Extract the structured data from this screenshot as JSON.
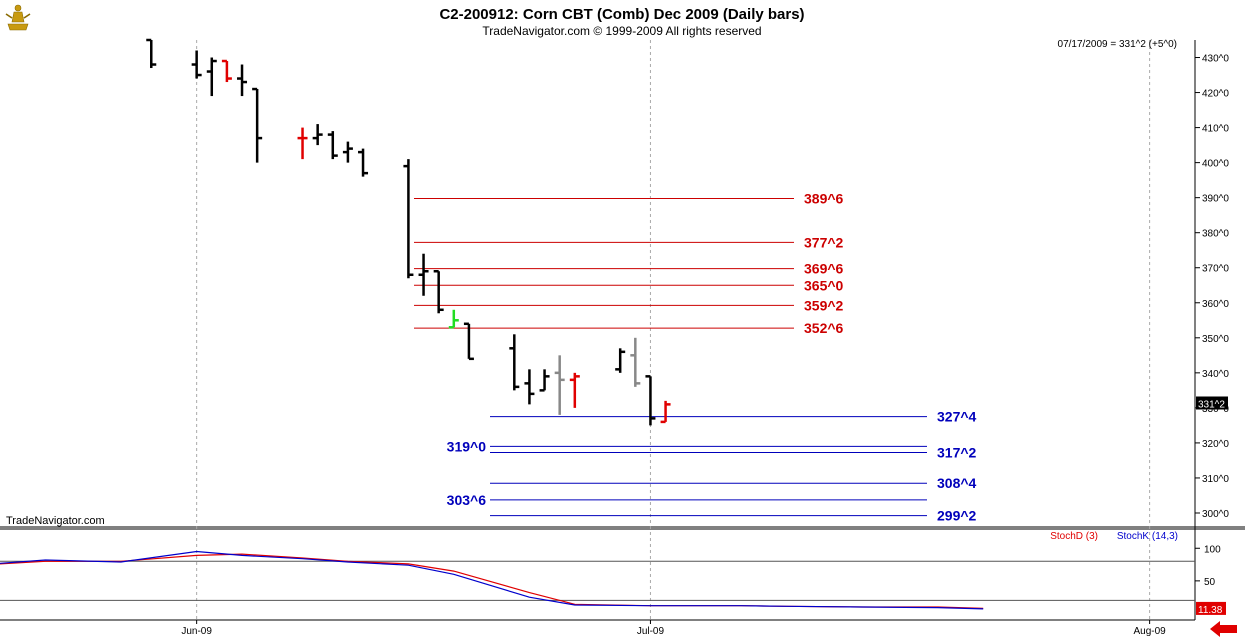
{
  "header": {
    "title": "C2-200912:  Corn CBT (Comb) Dec 2009  (Daily bars)",
    "subtitle": "TradeNavigator.com © 1999-2009 All rights reserved",
    "last_quote": "07/17/2009 = 331^2 (+5^0)",
    "watermark": "TradeNavigator.com",
    "logo_icon": "trader-figure-logo-icon"
  },
  "footer": {
    "scroll_icon": "left-arrow-icon"
  },
  "colors": {
    "up_bar": "#000000",
    "down_bar": "#000000",
    "red_bar": "#e00000",
    "gray_bar": "#888888",
    "green_bar": "#22dd22",
    "resistance": "#cc0000",
    "support": "#0000bb",
    "stoch_d": "#e00000",
    "stoch_k": "#0000cc"
  },
  "chart_data": [
    {
      "type": "ohlc",
      "title": "C2-200912:  Corn CBT (Comb) Dec 2009  (Daily bars)",
      "xlabel": "",
      "ylabel": "",
      "ylim": [
        296,
        435
      ],
      "y_ticks": [
        "300^0",
        "310^0",
        "320^0",
        "330^0",
        "340^0",
        "350^0",
        "360^0",
        "370^0",
        "380^0",
        "390^0",
        "400^0",
        "410^0",
        "420^0",
        "430^0"
      ],
      "y_tick_values": [
        300,
        310,
        320,
        330,
        340,
        350,
        360,
        370,
        380,
        390,
        400,
        410,
        420,
        430
      ],
      "x_tick_labels": [
        "Jun-09",
        "Jul-09",
        "Aug-09"
      ],
      "x_tick_dates": [
        "2009-06-01",
        "2009-07-01",
        "2009-08-03"
      ],
      "date_range": [
        "2009-05-19",
        "2009-08-06"
      ],
      "last_price_label": "331^2",
      "last_price": 331.25,
      "bars": [
        {
          "date": "2009-05-29",
          "o": 435,
          "h": 435,
          "l": 427,
          "c": 428,
          "color": "black"
        },
        {
          "date": "2009-06-01",
          "o": 428,
          "h": 432,
          "l": 424,
          "c": 425,
          "color": "black"
        },
        {
          "date": "2009-06-02",
          "o": 426,
          "h": 430,
          "l": 419,
          "c": 429,
          "color": "black"
        },
        {
          "date": "2009-06-03",
          "o": 429,
          "h": 429,
          "l": 423,
          "c": 424,
          "color": "red"
        },
        {
          "date": "2009-06-04",
          "o": 424,
          "h": 428,
          "l": 419,
          "c": 423,
          "color": "black"
        },
        {
          "date": "2009-06-05",
          "o": 421,
          "h": 421,
          "l": 400,
          "c": 407,
          "color": "black"
        },
        {
          "date": "2009-06-08",
          "o": 407,
          "h": 410,
          "l": 401,
          "c": 407,
          "color": "red"
        },
        {
          "date": "2009-06-09",
          "o": 407,
          "h": 411,
          "l": 405,
          "c": 408,
          "color": "black"
        },
        {
          "date": "2009-06-10",
          "o": 408,
          "h": 409,
          "l": 401,
          "c": 402,
          "color": "black"
        },
        {
          "date": "2009-06-11",
          "o": 403,
          "h": 406,
          "l": 400,
          "c": 404,
          "color": "black"
        },
        {
          "date": "2009-06-12",
          "o": 403,
          "h": 404,
          "l": 396,
          "c": 397,
          "color": "black"
        },
        {
          "date": "2009-06-15",
          "o": 399,
          "h": 401,
          "l": 367,
          "c": 368,
          "color": "black"
        },
        {
          "date": "2009-06-16",
          "o": 368,
          "h": 374,
          "l": 362,
          "c": 369,
          "color": "black"
        },
        {
          "date": "2009-06-17",
          "o": 369,
          "h": 369,
          "l": 357,
          "c": 358,
          "color": "black"
        },
        {
          "date": "2009-06-18",
          "o": 353,
          "h": 358,
          "l": 353,
          "c": 355,
          "color": "green"
        },
        {
          "date": "2009-06-19",
          "o": 354,
          "h": 354,
          "l": 344,
          "c": 344,
          "color": "black"
        },
        {
          "date": "2009-06-22",
          "o": 347,
          "h": 351,
          "l": 335,
          "c": 336,
          "color": "black"
        },
        {
          "date": "2009-06-23",
          "o": 337,
          "h": 341,
          "l": 331,
          "c": 334,
          "color": "black"
        },
        {
          "date": "2009-06-24",
          "o": 335,
          "h": 341,
          "l": 335,
          "c": 339,
          "color": "black"
        },
        {
          "date": "2009-06-25",
          "o": 340,
          "h": 345,
          "l": 328,
          "c": 338,
          "color": "gray"
        },
        {
          "date": "2009-06-26",
          "o": 338,
          "h": 340,
          "l": 330,
          "c": 339,
          "color": "red"
        },
        {
          "date": "2009-06-29",
          "o": 341,
          "h": 347,
          "l": 340,
          "c": 346,
          "color": "black"
        },
        {
          "date": "2009-06-30",
          "o": 345,
          "h": 350,
          "l": 336,
          "c": 337,
          "color": "gray"
        },
        {
          "date": "2009-07-01",
          "o": 339,
          "h": 339,
          "l": 325,
          "c": 327,
          "color": "black"
        },
        {
          "date": "2009-07-02",
          "o": 326,
          "h": 332,
          "l": 326,
          "c": 331,
          "color": "red"
        }
      ],
      "levels": [
        {
          "label": "389^6",
          "value": 389.75,
          "color": "resistance",
          "label_side": "right"
        },
        {
          "label": "377^2",
          "value": 377.25,
          "color": "resistance",
          "label_side": "right"
        },
        {
          "label": "369^6",
          "value": 369.75,
          "color": "resistance",
          "label_side": "right"
        },
        {
          "label": "365^0",
          "value": 365.0,
          "color": "resistance",
          "label_side": "right"
        },
        {
          "label": "359^2",
          "value": 359.25,
          "color": "resistance",
          "label_side": "right"
        },
        {
          "label": "352^6",
          "value": 352.75,
          "color": "resistance",
          "label_side": "right"
        },
        {
          "label": "327^4",
          "value": 327.5,
          "color": "support",
          "label_side": "right"
        },
        {
          "label": "319^0",
          "value": 319.0,
          "color": "support",
          "label_side": "left"
        },
        {
          "label": "317^2",
          "value": 317.25,
          "color": "support",
          "label_side": "right"
        },
        {
          "label": "308^4",
          "value": 308.5,
          "color": "support",
          "label_side": "right"
        },
        {
          "label": "303^6",
          "value": 303.75,
          "color": "support",
          "label_side": "left"
        },
        {
          "label": "299^2",
          "value": 299.25,
          "color": "support",
          "label_side": "right"
        }
      ]
    },
    {
      "type": "line",
      "title": "",
      "ylim": [
        -10,
        128
      ],
      "y_ticks": [
        "100",
        "50"
      ],
      "y_tick_values": [
        100,
        50
      ],
      "reference_lines": [
        80,
        20
      ],
      "last_value_label": "11.38",
      "legend": [
        "StochD (3)",
        "StochK (14,3)"
      ],
      "series": [
        {
          "name": "StochD (3)",
          "color": "stoch_d",
          "x": [
            "2009-05-19",
            "2009-05-22",
            "2009-05-27",
            "2009-06-01",
            "2009-06-04",
            "2009-06-08",
            "2009-06-11",
            "2009-06-15",
            "2009-06-18",
            "2009-06-23",
            "2009-06-26",
            "2009-07-01",
            "2009-07-07",
            "2009-07-10",
            "2009-07-15",
            "2009-07-20",
            "2009-07-23"
          ],
          "values": [
            76,
            80,
            80,
            89,
            91,
            85,
            80,
            76,
            65,
            32,
            14,
            12,
            12,
            11,
            10,
            10,
            8
          ]
        },
        {
          "name": "StochK (14,3)",
          "color": "stoch_k",
          "x": [
            "2009-05-19",
            "2009-05-22",
            "2009-05-27",
            "2009-06-01",
            "2009-06-04",
            "2009-06-08",
            "2009-06-11",
            "2009-06-15",
            "2009-06-18",
            "2009-06-23",
            "2009-06-26",
            "2009-07-01",
            "2009-07-07",
            "2009-07-10",
            "2009-07-15",
            "2009-07-20",
            "2009-07-23"
          ],
          "values": [
            77,
            82,
            79,
            95,
            89,
            84,
            79,
            74,
            60,
            25,
            13,
            12,
            12,
            11,
            10,
            9,
            7
          ]
        }
      ]
    }
  ]
}
